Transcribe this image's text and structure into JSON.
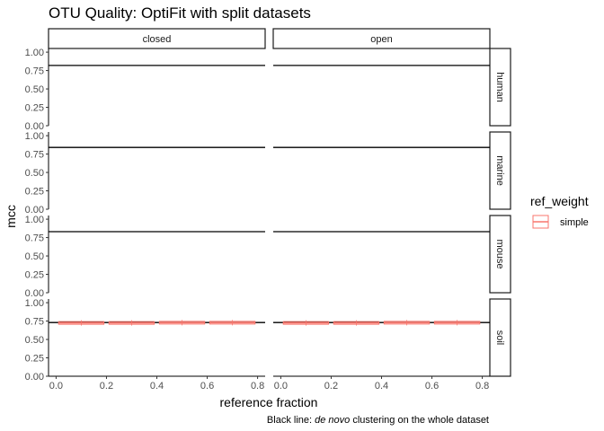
{
  "chart_data": {
    "type": "box",
    "title": "OTU Quality: OptiFit with split datasets",
    "xlabel": "reference fraction",
    "ylabel": "mcc",
    "xlim": [
      -0.03,
      0.83
    ],
    "ylim": [
      0,
      1.05
    ],
    "x_ticks": [
      "0.0",
      "0.2",
      "0.4",
      "0.6",
      "0.8"
    ],
    "y_ticks": [
      "0.00",
      "0.25",
      "0.50",
      "0.75",
      "1.00"
    ],
    "columns": [
      "closed",
      "open"
    ],
    "rows": [
      "human",
      "marine",
      "mouse",
      "soil"
    ],
    "reference_lines": {
      "human": 0.82,
      "marine": 0.84,
      "mouse": 0.83,
      "soil": 0.73
    },
    "series": [
      {
        "name": "simple",
        "color": "#F8766D",
        "points": [
          {
            "row": "soil",
            "col": "closed",
            "x": 0.1,
            "y": 0.725
          },
          {
            "row": "soil",
            "col": "closed",
            "x": 0.3,
            "y": 0.725
          },
          {
            "row": "soil",
            "col": "closed",
            "x": 0.5,
            "y": 0.728
          },
          {
            "row": "soil",
            "col": "closed",
            "x": 0.7,
            "y": 0.728
          },
          {
            "row": "soil",
            "col": "open",
            "x": 0.1,
            "y": 0.725
          },
          {
            "row": "soil",
            "col": "open",
            "x": 0.3,
            "y": 0.725
          },
          {
            "row": "soil",
            "col": "open",
            "x": 0.5,
            "y": 0.728
          },
          {
            "row": "soil",
            "col": "open",
            "x": 0.7,
            "y": 0.728
          }
        ]
      }
    ],
    "legend": {
      "title": "ref_weight",
      "position": "right",
      "entries": [
        "simple"
      ]
    },
    "grid": false,
    "caption": {
      "prefix": "Black line: ",
      "italic": "de novo",
      "suffix": " clustering on the whole dataset"
    }
  }
}
